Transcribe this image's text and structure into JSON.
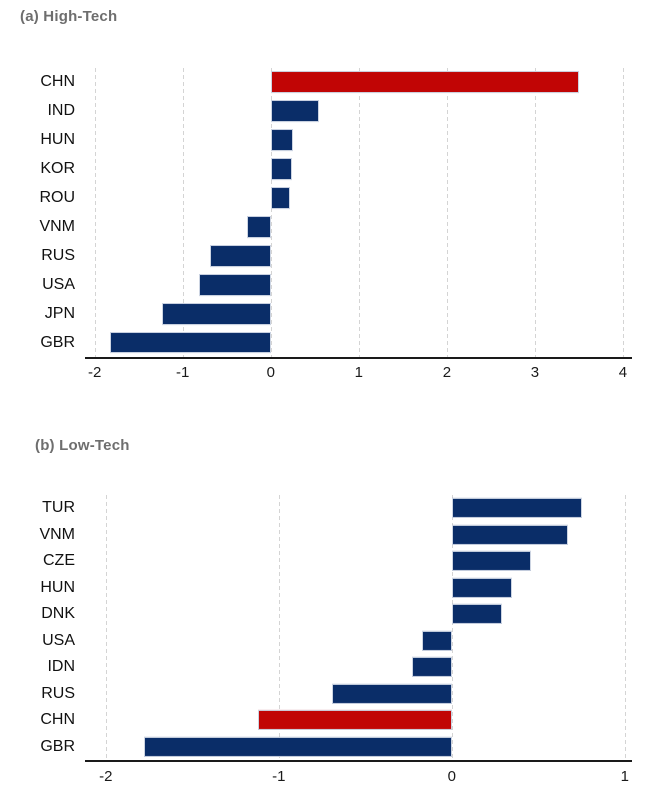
{
  "style": {
    "background": "#ffffff",
    "bar_color": "#0a2d68",
    "highlight_color": "#c10505",
    "grid_color": "#d4d4d4",
    "axis_color": "#1a1a1a",
    "title_color": "#6e6e6e",
    "tick_label_color": "#1a1a1a",
    "category_label_color": "#111111"
  },
  "chart_data": [
    {
      "type": "bar",
      "orientation": "horizontal",
      "title": "(a) High-Tech",
      "categories": [
        "CHN",
        "IND",
        "HUN",
        "KOR",
        "ROU",
        "VNM",
        "RUS",
        "USA",
        "JPN",
        "GBR"
      ],
      "values": [
        3.5,
        0.55,
        0.25,
        0.24,
        0.22,
        -0.27,
        -0.69,
        -0.82,
        -1.23,
        -1.83
      ],
      "highlight_category": "CHN",
      "highlight_index": 0,
      "xticks": [
        -2,
        -1,
        0,
        1,
        2,
        3,
        4
      ],
      "xlim": [
        -2.11,
        4.08
      ],
      "grid": "dashed-vertical",
      "legend": "none",
      "xlabel": "",
      "ylabel": ""
    },
    {
      "type": "bar",
      "orientation": "horizontal",
      "title": "(b) Low-Tech",
      "categories": [
        "TUR",
        "VNM",
        "CZE",
        "HUN",
        "DNK",
        "USA",
        "IDN",
        "RUS",
        "CHN",
        "GBR"
      ],
      "values": [
        0.75,
        0.67,
        0.46,
        0.35,
        0.29,
        -0.17,
        -0.23,
        -0.69,
        -1.12,
        -1.78
      ],
      "highlight_category": "CHN",
      "highlight_index": 8,
      "xticks": [
        -2,
        -1,
        0,
        1
      ],
      "xlim": [
        -2.12,
        1.03
      ],
      "grid": "dashed-vertical",
      "legend": "none",
      "xlabel": "",
      "ylabel": ""
    }
  ]
}
